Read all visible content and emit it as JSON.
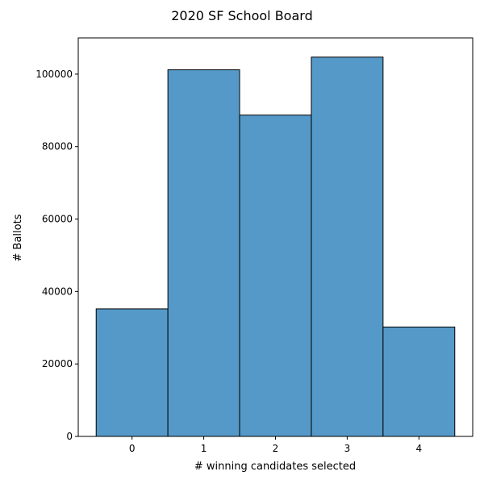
{
  "chart_data": {
    "type": "bar",
    "title": "2020 SF School Board",
    "xlabel": "# winning candidates selected",
    "ylabel": "# Ballots",
    "categories": [
      "0",
      "1",
      "2",
      "3",
      "4"
    ],
    "values": [
      35200,
      101200,
      88700,
      104700,
      30200
    ],
    "xlim": [
      -0.75,
      4.75
    ],
    "ylim": [
      0,
      110000
    ],
    "yticks": [
      0,
      20000,
      40000,
      60000,
      80000,
      100000
    ],
    "ytick_labels": [
      "0",
      "20000",
      "40000",
      "60000",
      "80000",
      "100000"
    ],
    "xticks": [
      0,
      1,
      2,
      3,
      4
    ],
    "xtick_labels": [
      "0",
      "1",
      "2",
      "3",
      "4"
    ],
    "bar_color": "#5599c8",
    "edge_color": "#000000",
    "grid": false,
    "legend": false
  }
}
